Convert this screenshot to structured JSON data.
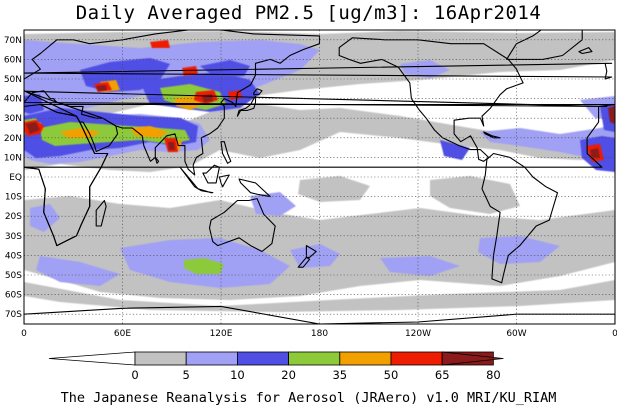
{
  "title": "Daily Averaged PM2.5 [ug/m3]: 16Apr2014",
  "footer": "The Japanese Reanalysis for Aerosol (JRAero) v1.0 MRI/KU_RIAM",
  "colors": {
    "levels": [
      "#ffffff",
      "#c2c2c2",
      "#a0a0f4",
      "#4f4fe6",
      "#8dca3a",
      "#f2a000",
      "#ee1c00",
      "#8b1a1a"
    ],
    "land_outline": "#000000",
    "grid": "#444444"
  },
  "map": {
    "lon_labels": [
      "0",
      "60E",
      "120E",
      "180",
      "120W",
      "60W",
      "0"
    ],
    "lat_labels": [
      "70N",
      "60N",
      "50N",
      "40N",
      "30N",
      "20N",
      "10N",
      "EQ",
      "10S",
      "20S",
      "30S",
      "40S",
      "50S",
      "60S",
      "70S"
    ]
  },
  "colorbar": {
    "labels": [
      "0",
      "5",
      "10",
      "20",
      "35",
      "50",
      "65",
      "80"
    ]
  },
  "chart_data": {
    "type": "heatmap",
    "title": "Daily Averaged PM2.5 [ug/m3]: 16Apr2014",
    "xlabel": "",
    "ylabel": "",
    "x_range": [
      0,
      360
    ],
    "y_range": [
      -75,
      75
    ],
    "contour_levels": [
      0,
      5,
      10,
      20,
      35,
      50,
      65,
      80
    ],
    "grid": true
  }
}
